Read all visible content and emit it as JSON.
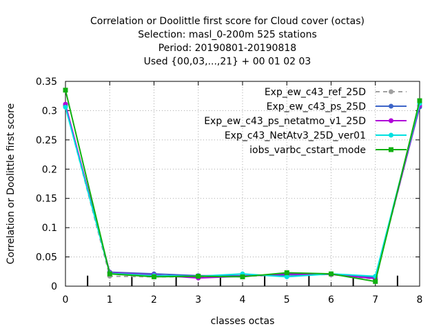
{
  "chart_data": {
    "type": "line",
    "title_lines": [
      "Correlation or Doolittle first score  for Cloud cover (octas)",
      "Selection: masl_0-200m    525 stations",
      "Period: 20190801-20190818",
      "Used {00,03,...,21} + 00 01 02 03"
    ],
    "xlabel": "classes octas",
    "ylabel": "Correlation or Doolittle first score",
    "xlim": [
      0,
      8
    ],
    "ylim": [
      0,
      0.35
    ],
    "x_ticks": [
      "0",
      "1",
      "2",
      "3",
      "4",
      "5",
      "6",
      "7",
      "8"
    ],
    "y_ticks": [
      "0",
      "0.05",
      "0.1",
      "0.15",
      "0.2",
      "0.25",
      "0.3",
      "0.35"
    ],
    "grid": true,
    "legend_position": "top-right",
    "x": [
      0,
      1,
      2,
      3,
      4,
      5,
      6,
      7,
      8
    ],
    "series": [
      {
        "name": "Exp_ew_c43_ref_25D",
        "color": "#a0a0a0",
        "dashed": true,
        "marker": "circle",
        "values": [
          0.307,
          0.017,
          0.016,
          0.016,
          0.017,
          0.019,
          0.02,
          0.012,
          0.307
        ]
      },
      {
        "name": "Exp_ew_c43_ps_25D",
        "color": "#3c64c8",
        "dashed": false,
        "marker": "circle",
        "values": [
          0.308,
          0.024,
          0.021,
          0.018,
          0.018,
          0.019,
          0.021,
          0.015,
          0.306
        ]
      },
      {
        "name": "Exp_ew_c43_ps_netatmo_v1_25D",
        "color": "#b000d8",
        "dashed": false,
        "marker": "circle",
        "values": [
          0.311,
          0.023,
          0.019,
          0.014,
          0.017,
          0.021,
          0.02,
          0.013,
          0.309
        ]
      },
      {
        "name": "Exp_c43_NetAtv3_25D_ver01",
        "color": "#00e0e0",
        "dashed": false,
        "marker": "circle",
        "values": [
          0.306,
          0.022,
          0.018,
          0.017,
          0.021,
          0.016,
          0.021,
          0.017,
          0.312
        ]
      },
      {
        "name": "iobs_varbc_cstart_mode",
        "color": "#10b010",
        "dashed": false,
        "marker": "square",
        "values": [
          0.335,
          0.021,
          0.016,
          0.017,
          0.016,
          0.023,
          0.021,
          0.008,
          0.317
        ]
      }
    ],
    "bar_marks": [
      0.5,
      1.5,
      2.5,
      3.5,
      4.5,
      5.5,
      6.5,
      7.5
    ],
    "bar_mark_value": 0.018
  }
}
